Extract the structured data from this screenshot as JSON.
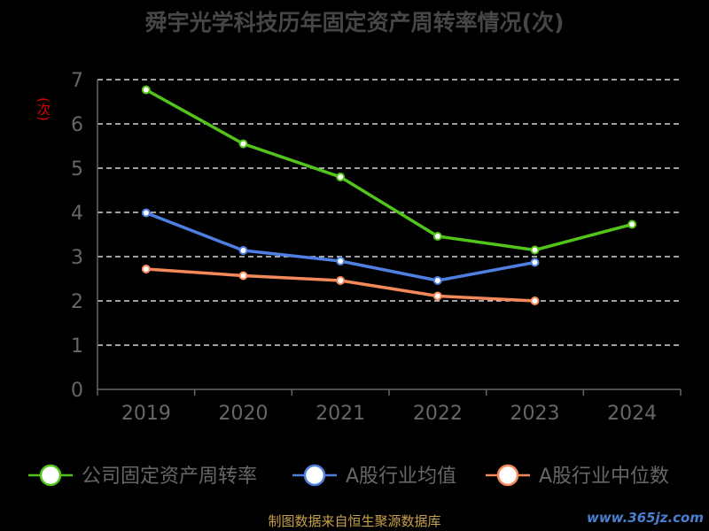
{
  "chart_data": {
    "type": "line",
    "title": "舜宇光学科技历年固定资产周转率情况(次)",
    "ylabel": "(次)",
    "categories": [
      "2019",
      "2020",
      "2021",
      "2022",
      "2023",
      "2024"
    ],
    "ylim": [
      0,
      7
    ],
    "yticks": [
      "0",
      "1",
      "2",
      "3",
      "4",
      "5",
      "6",
      "7"
    ],
    "grid": true,
    "legend_position": "bottom",
    "series": [
      {
        "name": "公司固定资产周转率",
        "color": "#52c41a",
        "values": [
          6.77,
          5.55,
          4.8,
          3.46,
          3.15,
          3.73
        ]
      },
      {
        "name": "A股行业均值",
        "color": "#4f7fe0",
        "values": [
          3.99,
          3.14,
          2.9,
          2.46,
          2.87,
          null
        ]
      },
      {
        "name": "A股行业中位数",
        "color": "#f5895a",
        "values": [
          2.72,
          2.57,
          2.46,
          2.11,
          2.0,
          null
        ]
      }
    ]
  },
  "source_note": "制图数据来自恒生聚源数据库",
  "watermark": "www.365jz.com"
}
